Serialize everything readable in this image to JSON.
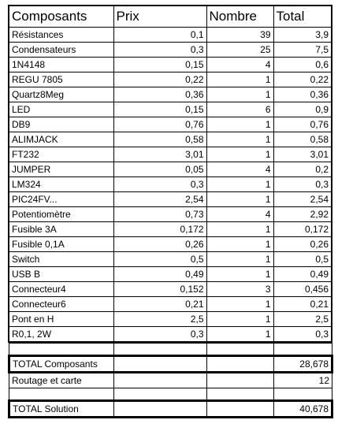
{
  "headers": [
    "Composants",
    "Prix",
    "Nombre",
    "Total"
  ],
  "rows": [
    [
      "Résistances",
      "0,1",
      "39",
      "3,9"
    ],
    [
      "Condensateurs",
      "0,3",
      "25",
      "7,5"
    ],
    [
      "1N4148",
      "0,15",
      "4",
      "0,6"
    ],
    [
      "REGU 7805",
      "0,22",
      "1",
      "0,22"
    ],
    [
      "Quartz8Meg",
      "0,36",
      "1",
      "0,36"
    ],
    [
      "LED",
      "0,15",
      "6",
      "0,9"
    ],
    [
      "DB9",
      "0,76",
      "1",
      "0,76"
    ],
    [
      "ALIMJACK",
      "0,58",
      "1",
      "0,58"
    ],
    [
      "FT232",
      "3,01",
      "1",
      "3,01"
    ],
    [
      "JUMPER",
      "0,05",
      "4",
      "0,2"
    ],
    [
      "LM324",
      "0,3",
      "1",
      "0,3"
    ],
    [
      "PIC24FV...",
      "2,54",
      "1",
      "2,54"
    ],
    [
      "Potentiomètre",
      "0,73",
      "4",
      "2,92"
    ],
    [
      "Fusible 3A",
      "0,172",
      "1",
      "0,172"
    ],
    [
      "Fusible 0,1A",
      "0,26",
      "1",
      "0,26"
    ],
    [
      "Switch",
      "0,5",
      "1",
      "0,5"
    ],
    [
      "USB B",
      "0,49",
      "1",
      "0,49"
    ],
    [
      "Connecteur4",
      "0,152",
      "3",
      "0,456"
    ],
    [
      "Connecteur6",
      "0,21",
      "1",
      "0,21"
    ],
    [
      "Pont en H",
      "2,5",
      "1",
      "2,5"
    ],
    [
      "R0,1, 2W",
      "0,3",
      "1",
      "0,3"
    ]
  ],
  "summary": {
    "total_composants_label": "TOTAL Composants",
    "total_composants_value": "28,678",
    "routage_label": "Routage et carte",
    "routage_value": "12",
    "total_solution_label": "TOTAL Solution",
    "total_solution_value": "40,678"
  }
}
